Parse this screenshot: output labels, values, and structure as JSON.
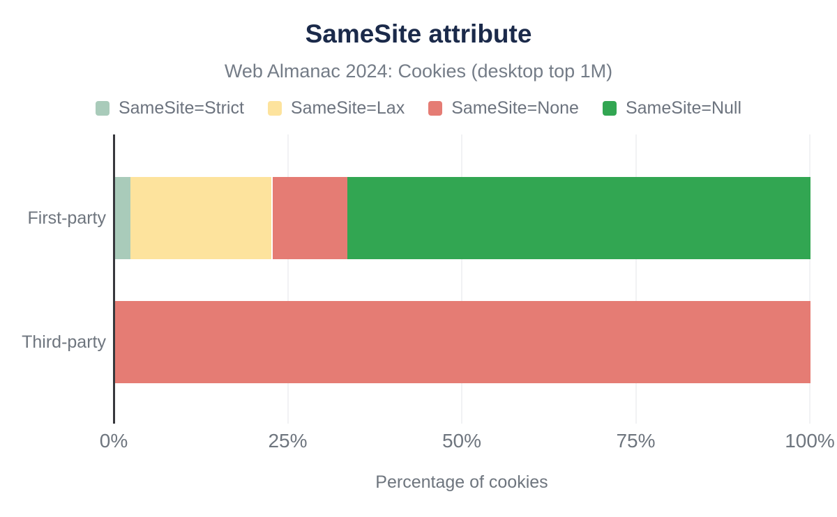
{
  "title": "SameSite attribute",
  "subtitle": "Web Almanac 2024: Cookies (desktop top 1M)",
  "colors": {
    "background": "#ffffff",
    "title_text": "#1b2a4a",
    "muted_text": "#6e757e",
    "axis_line": "#37383d",
    "gridline": "#f1f2f4",
    "samesite_strict": "#a9cbba",
    "samesite_lax": "#fde39d",
    "samesite_none": "#e57c74",
    "samesite_null": "#32a652"
  },
  "chart_data": {
    "type": "bar",
    "orientation": "horizontal",
    "stacked": true,
    "title": "SameSite attribute",
    "subtitle": "Web Almanac 2024: Cookies (desktop top 1M)",
    "categories": [
      "First-party",
      "Third-party"
    ],
    "series": [
      {
        "name": "SameSite=Strict",
        "color": "#a9cbba",
        "values": [
          2.2,
          0
        ]
      },
      {
        "name": "SameSite=Lax",
        "color": "#fde39d",
        "values": [
          20.3,
          0
        ]
      },
      {
        "name": "SameSite=None",
        "color": "#e57c74",
        "values": [
          10.9,
          100
        ],
        "divider_before": true
      },
      {
        "name": "SameSite=Null",
        "color": "#32a652",
        "values": [
          66.6,
          0
        ]
      }
    ],
    "xlabel": "Percentage of cookies",
    "ylabel": "",
    "xlim": [
      0,
      100
    ],
    "x_ticks": [
      {
        "label": "0%",
        "value": 0
      },
      {
        "label": "25%",
        "value": 25
      },
      {
        "label": "50%",
        "value": 50
      },
      {
        "label": "75%",
        "value": 75
      },
      {
        "label": "100%",
        "value": 100
      }
    ],
    "grid": "vertical",
    "legend_position": "top"
  }
}
